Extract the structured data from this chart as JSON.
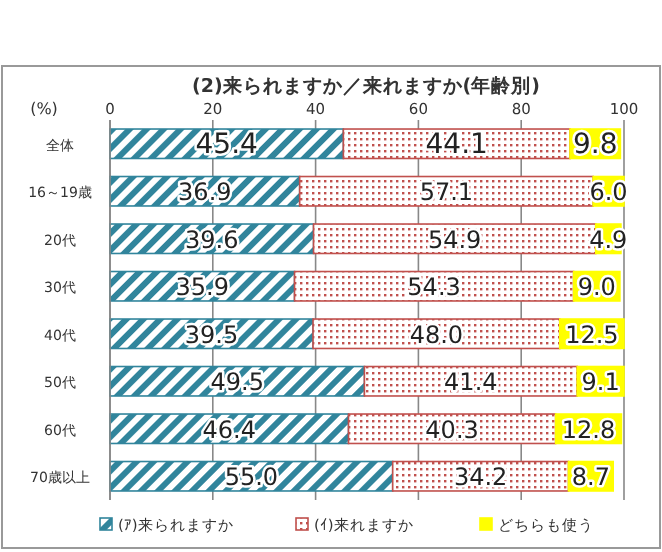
{
  "chart_data": {
    "type": "bar",
    "orientation": "horizontal",
    "stacked": true,
    "title": "(2)来られますか／来れますか(年齢別)",
    "xlabel": "(%)",
    "categories": [
      "全体",
      "16～19歳",
      "20代",
      "30代",
      "40代",
      "50代",
      "60代",
      "70歳以上"
    ],
    "series": [
      {
        "name": "(ｱ)来られますか",
        "color": "#31859c",
        "values": [
          45.4,
          36.9,
          39.6,
          35.9,
          39.5,
          49.5,
          46.4,
          55.0
        ],
        "value_labels": [
          "45.4",
          "36.9",
          "39.6",
          "35.9",
          "39.5",
          "49.5",
          "46.4",
          "55.0"
        ]
      },
      {
        "name": "(ｲ)来れますか",
        "color": "#c0504d",
        "values": [
          44.1,
          57.1,
          54.9,
          54.3,
          48.0,
          41.4,
          40.3,
          34.2
        ],
        "value_labels": [
          "44.1",
          "57.1",
          "54.9",
          "54.3",
          "48.0",
          "41.4",
          "40.3",
          "34.2"
        ]
      },
      {
        "name": "どちらも使う",
        "color": "#ffff00",
        "values": [
          9.8,
          6.0,
          4.9,
          9.0,
          12.5,
          9.1,
          12.8,
          8.7
        ],
        "value_labels": [
          "9.8",
          "6.0",
          "4.9",
          "9.0",
          "12.5",
          "9.1",
          "12.8",
          "8.7"
        ]
      }
    ],
    "xlim": [
      0,
      100
    ],
    "xticks": [
      0,
      20,
      40,
      60,
      80,
      100
    ],
    "grid": "x",
    "legend": "bottom"
  }
}
